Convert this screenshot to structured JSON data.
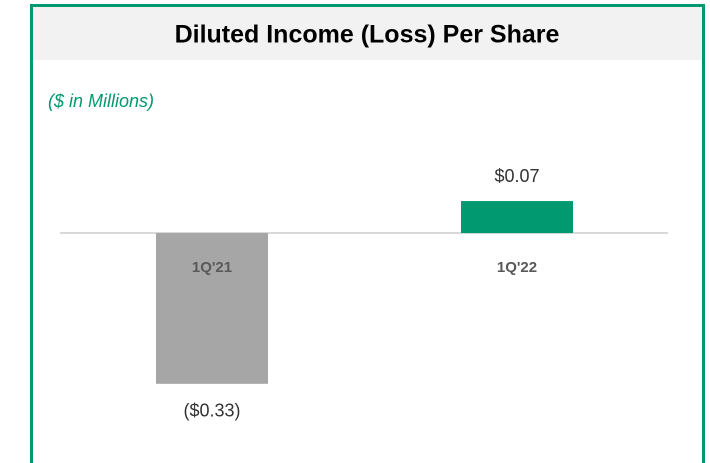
{
  "chart_data": {
    "type": "bar",
    "title": "Diluted Income (Loss) Per Share",
    "subtitle": "($ in Millions)",
    "categories": [
      "1Q'21",
      "1Q'22"
    ],
    "values": [
      -0.33,
      0.07
    ],
    "value_labels": [
      "($0.33)",
      "$0.07"
    ],
    "colors": [
      "#a6a6a6",
      "#009970"
    ],
    "ylim": [
      -0.4,
      0.15
    ]
  }
}
